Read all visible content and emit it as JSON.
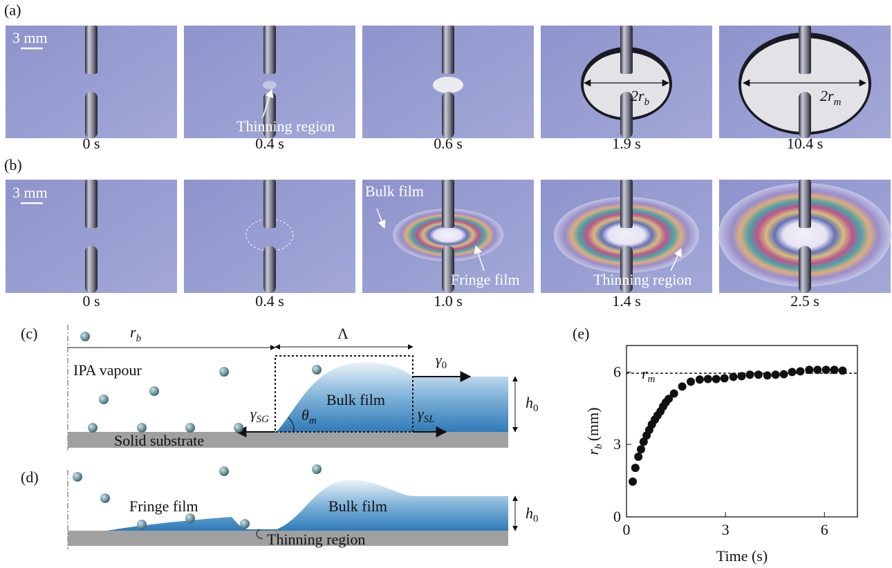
{
  "labels": {
    "a": "(a)",
    "b": "(b)",
    "c": "(c)",
    "d": "(d)",
    "e": "(e)"
  },
  "row_a": {
    "scale_bar": "3 mm",
    "times": [
      "0 s",
      "0.4 s",
      "0.6 s",
      "1.9 s",
      "10.4 s"
    ],
    "annotation": "Thinning region",
    "diameter_b": {
      "text": "2r",
      "sub": "b"
    },
    "diameter_m": {
      "text": "2r",
      "sub": "m"
    }
  },
  "row_b": {
    "scale_bar": "3 mm",
    "times": [
      "0 s",
      "0.4 s",
      "1.0 s",
      "1.4 s",
      "2.5 s"
    ],
    "annotations": [
      "Bulk film",
      "Fringe film",
      "Thinning region"
    ]
  },
  "diagram_c": {
    "r": "r",
    "r_sub": "b",
    "lambda": "Λ",
    "gamma": "γ",
    "gamma0_sub": "0",
    "gamma_sg_sub": "SG",
    "gamma_sl_sub": "SL",
    "theta": "θ",
    "theta_sub": "m",
    "ipa": "IPA vapour",
    "bulk": "Bulk film",
    "substrate": "Solid substrate",
    "h": "h",
    "h_sub": "0"
  },
  "diagram_d": {
    "fringe": "Fringe film",
    "bulk": "Bulk film",
    "thinning": "Thinning region",
    "h": "h",
    "h_sub": "0"
  },
  "chart_data": {
    "type": "scatter",
    "color": "#111111",
    "x": [
      0.19,
      0.27,
      0.36,
      0.44,
      0.52,
      0.61,
      0.69,
      0.77,
      0.86,
      0.94,
      1.03,
      1.11,
      1.19,
      1.28,
      1.44,
      1.69,
      1.95,
      2.22,
      2.47,
      2.72,
      2.97,
      3.24,
      3.49,
      3.74,
      4.0,
      4.27,
      4.52,
      4.77,
      5.02,
      5.27,
      5.54,
      5.79,
      6.05,
      6.3,
      6.55
    ],
    "values": [
      1.46,
      2.03,
      2.49,
      2.8,
      3.11,
      3.37,
      3.6,
      3.83,
      4.03,
      4.2,
      4.37,
      4.57,
      4.74,
      4.89,
      5.11,
      5.4,
      5.6,
      5.69,
      5.71,
      5.71,
      5.74,
      5.8,
      5.83,
      5.89,
      5.89,
      5.86,
      5.89,
      5.91,
      6.0,
      6.03,
      6.09,
      6.09,
      6.09,
      6.09,
      6.06
    ],
    "xlim": [
      0,
      7
    ],
    "ylim": [
      0,
      7.1
    ],
    "xticks": [
      0,
      3,
      6
    ],
    "yticks": [
      0,
      3,
      6
    ],
    "xlabel": "Time (s)",
    "ylabel": {
      "symbol": "r",
      "sub": "b",
      "unit": "(mm)"
    },
    "reference_line": {
      "value": 5.95,
      "symbol": "r",
      "sub": "m"
    }
  }
}
